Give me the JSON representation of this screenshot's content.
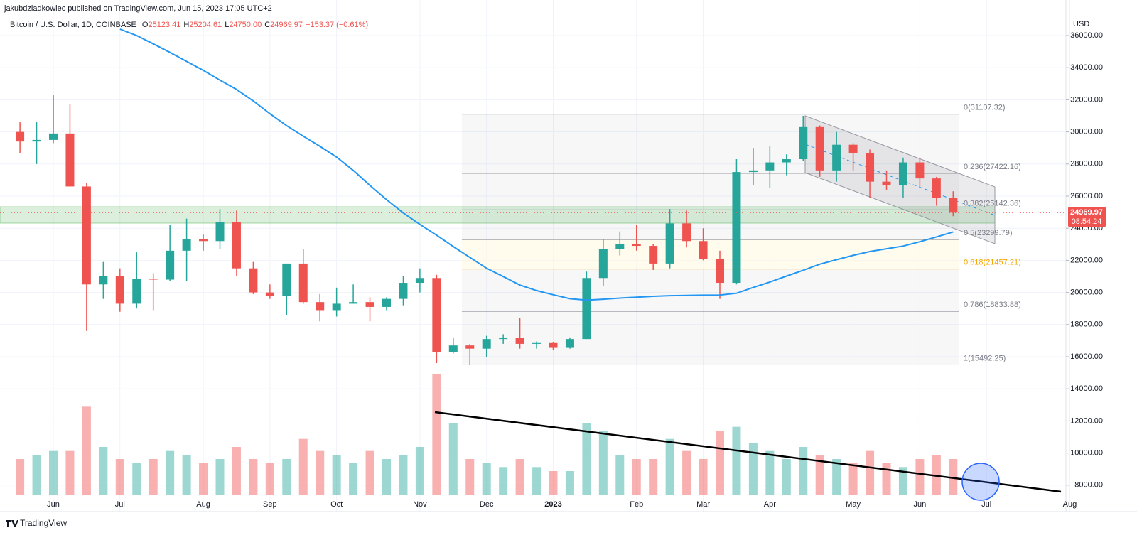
{
  "chart_data": {
    "type": "candlestick",
    "header": {
      "publisher": "jakubdziadkowiec published on TradingView.com, Jun 15, 2023 17:05 UTC+2",
      "symbol": "Bitcoin / U.S. Dollar, 1D, COINBASE",
      "ohlc": [
        {
          "key": "O",
          "value": "25123.41"
        },
        {
          "key": "H",
          "value": "25204.61"
        },
        {
          "key": "L",
          "value": "24750.00"
        },
        {
          "key": "C",
          "value": "24969.97"
        }
      ],
      "change": "−153.37 (−0.61%)"
    },
    "currency": "USD",
    "last_price": 24969.97,
    "countdown": "08:54:24",
    "footer": "TradingView",
    "categories": [
      null,
      null,
      "Jun",
      null,
      null,
      null,
      "Jul",
      null,
      null,
      null,
      null,
      "Aug",
      null,
      null,
      null,
      "Sep",
      null,
      null,
      null,
      "Oct",
      null,
      null,
      null,
      null,
      "Nov",
      null,
      null,
      null,
      "Dec",
      null,
      null,
      null,
      "2023",
      null,
      null,
      null,
      null,
      "Feb",
      null,
      null,
      null,
      "Mar",
      null,
      null,
      null,
      "Apr",
      null,
      null,
      null,
      null,
      "May",
      null,
      null,
      null,
      "Jun",
      null,
      null,
      null,
      "Jul",
      null,
      null,
      null,
      null,
      "Aug"
    ],
    "open": [
      30000,
      29400,
      29500,
      29900,
      26600,
      20500,
      21000,
      19300,
      20850,
      20800,
      22600,
      23300,
      23200,
      24400,
      21500,
      20000,
      19800,
      21800,
      19400,
      18900,
      19300,
      19400,
      19100,
      19600,
      20600,
      20900,
      16300,
      16700,
      16500,
      17100,
      17150,
      16800,
      16850,
      16550,
      17100,
      20900,
      22700,
      23000,
      22900,
      21800,
      24300,
      23200,
      22100,
      20600,
      27500,
      27600,
      28100,
      28300,
      30300,
      27600,
      29200,
      28700,
      26900,
      26700,
      28100,
      27100,
      25900,
      null,
      null,
      null,
      null,
      null,
      null,
      null
    ],
    "high": [
      30600,
      30600,
      32300,
      31700,
      26800,
      21900,
      21500,
      22500,
      21200,
      24200,
      24600,
      23600,
      25200,
      25100,
      21900,
      20500,
      21800,
      22700,
      19900,
      20300,
      20500,
      19700,
      19700,
      21000,
      21500,
      21100,
      17200,
      16800,
      17300,
      17400,
      18400,
      16950,
      16900,
      17200,
      21300,
      23300,
      23800,
      24200,
      23000,
      25200,
      25100,
      24000,
      22600,
      28300,
      29000,
      29100,
      28600,
      31000,
      30400,
      30000,
      29300,
      28900,
      27600,
      28400,
      28400,
      27200,
      26300,
      null,
      null,
      null,
      null,
      null,
      null,
      null
    ],
    "low": [
      28700,
      28000,
      29300,
      26600,
      17600,
      19600,
      18800,
      19000,
      18900,
      20700,
      20700,
      22600,
      22700,
      21000,
      19900,
      19600,
      18600,
      19300,
      18200,
      18500,
      19300,
      18200,
      18900,
      19200,
      20000,
      15600,
      16200,
      15500,
      16000,
      16800,
      16500,
      16500,
      16400,
      16500,
      17100,
      20400,
      22300,
      22600,
      21400,
      21500,
      22800,
      22000,
      19600,
      20500,
      26700,
      26500,
      27300,
      28200,
      27200,
      26900,
      27600,
      25900,
      26400,
      25900,
      26600,
      25400,
      24750,
      null,
      null,
      null,
      null,
      null,
      null,
      null
    ],
    "close": [
      29400,
      29500,
      29900,
      26600,
      20500,
      21000,
      19300,
      20850,
      20800,
      22600,
      23300,
      23200,
      24400,
      21500,
      20000,
      19800,
      21800,
      19400,
      18900,
      19300,
      19400,
      19100,
      19600,
      20600,
      20900,
      16300,
      16700,
      16500,
      17100,
      17150,
      16800,
      16850,
      16550,
      17100,
      20900,
      22700,
      23000,
      22900,
      21800,
      24300,
      23200,
      22100,
      20600,
      27500,
      27600,
      28100,
      28300,
      30300,
      27600,
      29200,
      28700,
      26900,
      26700,
      28100,
      27100,
      25900,
      24970,
      null,
      null,
      null,
      null,
      null,
      null,
      null
    ],
    "volume": [
      45,
      50,
      55,
      55,
      110,
      60,
      45,
      40,
      45,
      55,
      50,
      40,
      45,
      60,
      45,
      40,
      45,
      70,
      55,
      50,
      40,
      55,
      45,
      50,
      60,
      150,
      90,
      45,
      40,
      35,
      45,
      35,
      30,
      30,
      90,
      80,
      50,
      45,
      45,
      70,
      55,
      45,
      80,
      85,
      65,
      55,
      45,
      60,
      50,
      45,
      40,
      55,
      40,
      35,
      45,
      50,
      45,
      null,
      null,
      null,
      null,
      null,
      null,
      null
    ],
    "moving_average": {
      "color": "#2196f3",
      "values": [
        null,
        null,
        null,
        null,
        null,
        null,
        36400,
        36000,
        35480,
        34950,
        34390,
        33830,
        33220,
        32640,
        31930,
        31130,
        30390,
        29730,
        29100,
        28430,
        27600,
        26670,
        25780,
        24950,
        24240,
        23570,
        22860,
        22180,
        21510,
        20990,
        20460,
        20120,
        19860,
        19610,
        19520,
        19580,
        19650,
        19710,
        19760,
        19800,
        19820,
        19830,
        19840,
        19950,
        20310,
        20650,
        21020,
        21380,
        21760,
        22040,
        22310,
        22550,
        22720,
        22890,
        23160,
        23460,
        23770,
        null,
        null,
        null,
        null,
        null,
        null,
        null
      ]
    },
    "fib_levels": [
      {
        "label": "0(31107.32)",
        "value": 31107.32
      },
      {
        "label": "0.236(27422.16)",
        "value": 27422.16
      },
      {
        "label": "0.382(25142.36)",
        "value": 25142.36
      },
      {
        "label": "0.5(23299.79)",
        "value": 23299.79
      },
      {
        "label": "0.618(21457.21)",
        "value": 21457.21,
        "color": "#f7a600"
      },
      {
        "label": "0.786(18833.88)",
        "value": 18833.88
      },
      {
        "label": "1(15492.25)",
        "value": 15492.25
      }
    ],
    "up_color": "#26a69a",
    "down_color": "#ef5350",
    "ylim": [
      6354,
      38212
    ],
    "yticks": [
      {
        "value": 8000,
        "label": "8000.00"
      },
      {
        "value": 10000,
        "label": "10000.00"
      },
      {
        "value": 12000,
        "label": "12000.00"
      },
      {
        "value": 14000,
        "label": "14000.00"
      },
      {
        "value": 16000,
        "label": "16000.00"
      },
      {
        "value": 18000,
        "label": "18000.00"
      },
      {
        "value": 20000,
        "label": "20000.00"
      },
      {
        "value": 22000,
        "label": "22000.00"
      },
      {
        "value": 24000,
        "label": "24000.00"
      },
      {
        "value": 26000,
        "label": "26000.00"
      },
      {
        "value": 28000,
        "label": "28000.00"
      },
      {
        "value": 30000,
        "label": "30000.00"
      },
      {
        "value": 32000,
        "label": "32000.00"
      },
      {
        "value": 34000,
        "label": "34000.00"
      },
      {
        "value": 36000,
        "label": "36000.00"
      }
    ],
    "grid": true
  }
}
